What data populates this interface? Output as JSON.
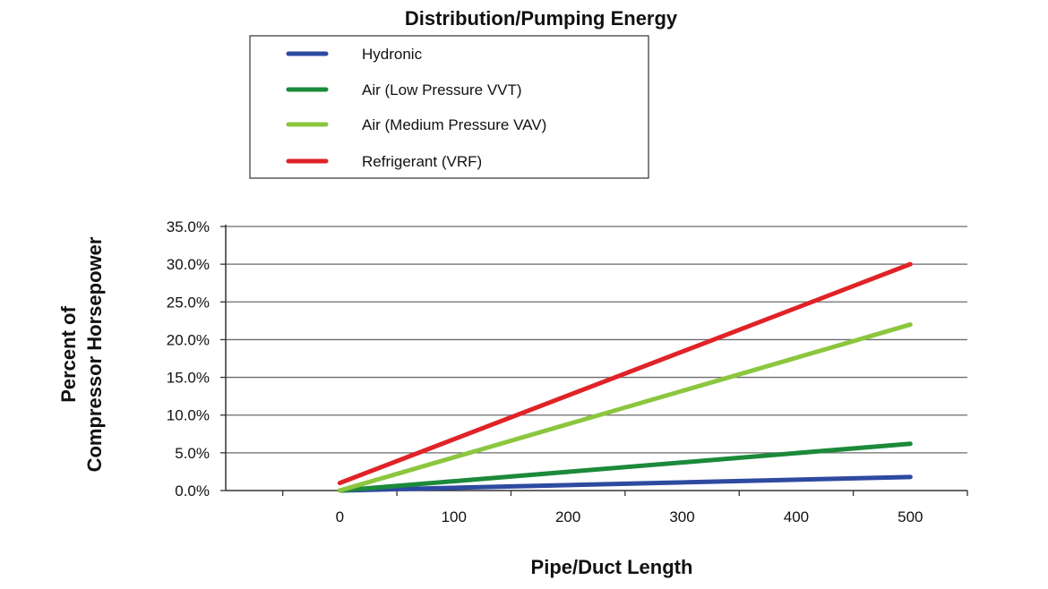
{
  "chart_data": {
    "type": "line",
    "title": "Distribution/Pumping Energy",
    "xlabel": "Pipe/Duct Length",
    "ylabel": [
      "Percent of",
      "Compressor Horsepower"
    ],
    "x": [
      0,
      500
    ],
    "xticks": [
      0,
      100,
      200,
      300,
      400,
      500
    ],
    "xtick_labels": [
      "0",
      "100",
      "200",
      "300",
      "400",
      "500"
    ],
    "xlim": [
      -100,
      550
    ],
    "yticks": [
      0,
      5,
      10,
      15,
      20,
      25,
      30,
      35
    ],
    "ytick_labels": [
      "0.0%",
      "5.0%",
      "10.0%",
      "15.0%",
      "20.0%",
      "25.0%",
      "30.0%",
      "35.0%"
    ],
    "ylim": [
      0,
      35
    ],
    "grid": true,
    "legend_position": "top-center",
    "series": [
      {
        "name": "Hydronic",
        "color": "#2e4aa0",
        "values": [
          0,
          1.8
        ]
      },
      {
        "name": "Air (Low Pressure VVT)",
        "color": "#1b8a3a",
        "values": [
          0,
          6.2
        ]
      },
      {
        "name": "Air (Medium Pressure VAV)",
        "color": "#8cc63f",
        "values": [
          0,
          22.0
        ]
      },
      {
        "name": "Refrigerant (VRF)",
        "color": "#e02327",
        "values": [
          1.0,
          30.0
        ]
      }
    ]
  }
}
